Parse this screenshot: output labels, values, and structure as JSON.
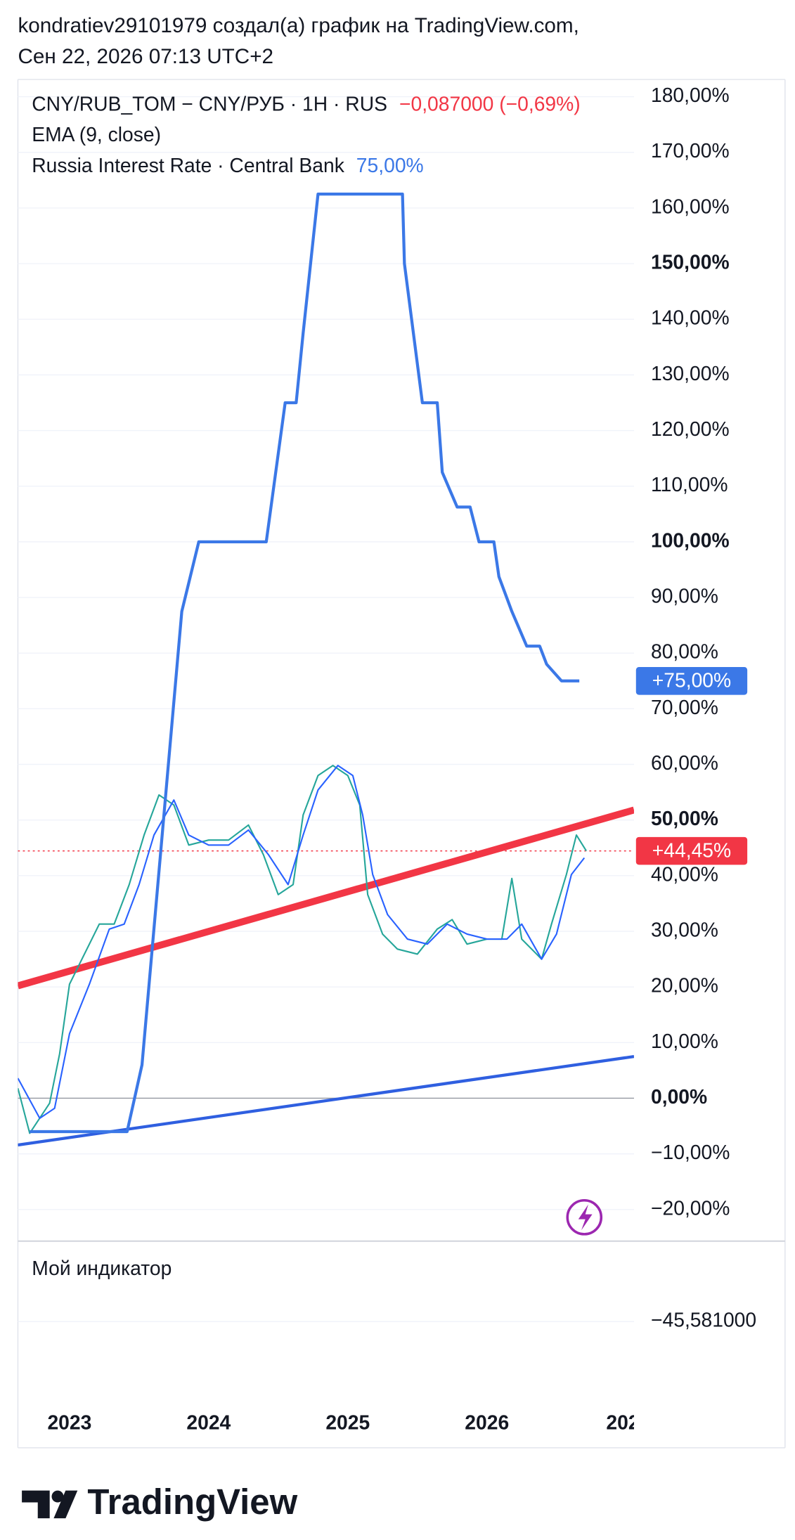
{
  "header": {
    "line1": "kondratiev29101979 создал(а) график на TradingView.com,",
    "line2": "Сен 22, 2026 07:13 UTC+2"
  },
  "footer": {
    "logo": "TradingView"
  },
  "chart_data": {
    "type": "line",
    "xlim": [
      2022.629,
      2027.057
    ],
    "xticks": [
      2023,
      2024,
      2025,
      2026,
      {
        "value": 2027,
        "label": "202"
      }
    ],
    "ylim": [
      -25.5,
      182.2
    ],
    "yticks": [
      {
        "value": -20,
        "label": "−20,00%"
      },
      {
        "value": -10,
        "label": "−10,00%"
      },
      {
        "value": 0,
        "label": "0,00%"
      },
      {
        "value": 10,
        "label": "10,00%"
      },
      {
        "value": 20,
        "label": "20,00%"
      },
      {
        "value": 30,
        "label": "30,00%"
      },
      {
        "value": 40,
        "label": "40,00%"
      },
      {
        "value": 50,
        "label": "50,00%"
      },
      {
        "value": 60,
        "label": "60,00%"
      },
      {
        "value": 70,
        "label": "70,00%"
      },
      {
        "value": 80,
        "label": "80,00%"
      },
      {
        "value": 90,
        "label": "90,00%"
      },
      {
        "value": 100,
        "label": "100,00%"
      },
      {
        "value": 110,
        "label": "110,00%"
      },
      {
        "value": 120,
        "label": "120,00%"
      },
      {
        "value": 130,
        "label": "130,00%"
      },
      {
        "value": 140,
        "label": "140,00%"
      },
      {
        "value": 150,
        "label": "150,00%"
      },
      {
        "value": 160,
        "label": "160,00%"
      },
      {
        "value": 170,
        "label": "170,00%"
      },
      {
        "value": 180,
        "label": "180,00%"
      }
    ],
    "bold_yticks": [
      150,
      100,
      50,
      0
    ],
    "grid": true,
    "zero_line": true,
    "series": [
      {
        "name": "CNY/RUB_TOM − CNY/РУБ · 1H · RUS",
        "color": "#26a69a",
        "width": 1.5,
        "legend_value": "−0,087000 (−0,69%)",
        "legend_value_color": "#f23645",
        "badge": "+44,45%",
        "badge_color": "#f23645",
        "price_line": true,
        "x": [
          2022.629,
          2022.714,
          2022.857,
          2022.929,
          2023.0,
          2023.107,
          2023.214,
          2023.321,
          2023.429,
          2023.536,
          2023.643,
          2023.75,
          2023.857,
          2024.0,
          2024.143,
          2024.286,
          2024.393,
          2024.5,
          2024.607,
          2024.679,
          2024.786,
          2024.893,
          2025.0,
          2025.086,
          2025.143,
          2025.25,
          2025.357,
          2025.5,
          2025.643,
          2025.75,
          2025.857,
          2026.0,
          2026.107,
          2026.179,
          2026.25,
          2026.393,
          2026.464,
          2026.571,
          2026.643,
          2026.714
        ],
        "values": [
          1.8,
          -6.3,
          -0.9,
          8.0,
          20.5,
          25.9,
          31.3,
          31.3,
          38.4,
          47.3,
          54.5,
          52.7,
          45.5,
          46.4,
          46.4,
          49.1,
          43.8,
          36.6,
          38.4,
          50.9,
          58.0,
          59.8,
          58.0,
          52.7,
          36.6,
          29.5,
          26.8,
          25.9,
          30.4,
          32.1,
          27.7,
          28.6,
          28.6,
          39.5,
          28.6,
          25.0,
          31.3,
          40.2,
          47.3,
          44.45
        ]
      },
      {
        "name": "EMA (9, close)",
        "color": "#2962ff",
        "width": 1.5,
        "x": [
          2022.629,
          2022.786,
          2022.893,
          2023.0,
          2023.143,
          2023.286,
          2023.393,
          2023.5,
          2023.607,
          2023.75,
          2023.857,
          2024.0,
          2024.143,
          2024.286,
          2024.429,
          2024.571,
          2024.679,
          2024.786,
          2024.929,
          2025.036,
          2025.107,
          2025.179,
          2025.286,
          2025.429,
          2025.571,
          2025.714,
          2025.857,
          2026.0,
          2026.143,
          2026.25,
          2026.393,
          2026.5,
          2026.607,
          2026.7
        ],
        "values": [
          3.6,
          -3.6,
          -1.8,
          11.6,
          20.5,
          30.4,
          31.3,
          38.4,
          47.3,
          53.6,
          47.3,
          45.5,
          45.5,
          48.2,
          43.8,
          38.4,
          47.3,
          55.4,
          59.8,
          58.0,
          50.9,
          40.2,
          33.0,
          28.6,
          27.7,
          31.3,
          29.5,
          28.6,
          28.6,
          31.3,
          25.0,
          29.5,
          40.2,
          43.2
        ]
      },
      {
        "name": "Russia Interest Rate · Central Bank",
        "color": "#3b78e7",
        "width": 3,
        "legend_value": "75,00%",
        "legend_value_color": "#3b78e7",
        "badge": "+75,00%",
        "badge_color": "#3b78e7",
        "x": [
          2022.714,
          2023.414,
          2023.521,
          2023.807,
          2023.929,
          2024.414,
          2024.55,
          2024.629,
          2024.679,
          2024.786,
          2025.393,
          2025.407,
          2025.536,
          2025.643,
          2025.679,
          2025.786,
          2025.879,
          2025.943,
          2026.05,
          2026.086,
          2026.179,
          2026.286,
          2026.379,
          2026.429,
          2026.536,
          2026.664
        ],
        "values": [
          -6,
          -6,
          6,
          87.5,
          100,
          100,
          125,
          125,
          137.5,
          162.5,
          162.5,
          150,
          125,
          125,
          112.5,
          106.25,
          106.25,
          100,
          100,
          93.75,
          87.5,
          81.25,
          81.25,
          78,
          75,
          75
        ]
      }
    ],
    "trendlines": [
      {
        "color": "#f23645",
        "width": 7,
        "x": [
          2022.629,
          2027.057
        ],
        "values": [
          20.2,
          51.8
        ]
      },
      {
        "color": "#2f5fe0",
        "width": 3,
        "x": [
          2022.629,
          2027.057
        ],
        "values": [
          -8.4,
          7.5
        ]
      }
    ],
    "indicator_pane": {
      "title": "Мой индикатор",
      "value_label": "−45,581000"
    }
  }
}
